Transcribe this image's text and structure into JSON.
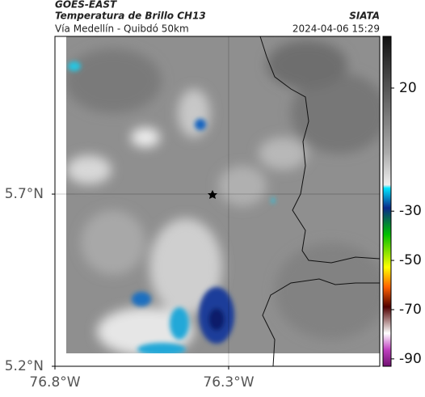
{
  "header": {
    "source": "GOES-EAST",
    "title": "Temperatura de Brillo CH13",
    "org": "SIATA",
    "subtitle": "Vía Medellín - Quibdó 50km",
    "datetime": "2024-04-06 15:29"
  },
  "map": {
    "xlim": [
      -76.8,
      -75.865
    ],
    "ylim": [
      5.2,
      6.158
    ],
    "xticks": [
      {
        "value": -76.8,
        "label": "76.8°W"
      },
      {
        "value": -76.3,
        "label": "76.3°W"
      }
    ],
    "yticks": [
      {
        "value": 5.7,
        "label": "5.7°N"
      },
      {
        "value": 5.2,
        "label": "5.2°N"
      }
    ],
    "grid": true
  },
  "colorbar": {
    "clim": [
      -93,
      41
    ],
    "ticks": [
      20,
      -30,
      -50,
      -70,
      -90
    ]
  }
}
